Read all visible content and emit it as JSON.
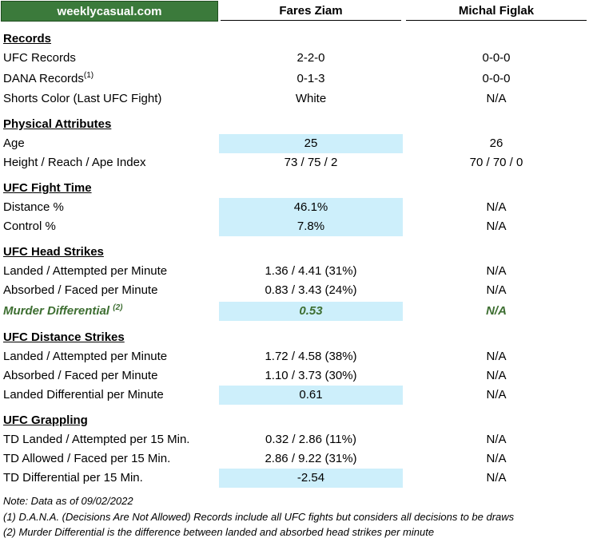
{
  "brand": "weeklycasual.com",
  "fighters": {
    "f1": "Fares Ziam",
    "f2": "Michal Figlak"
  },
  "sections": {
    "records": "Records",
    "physical": "Physical Attributes",
    "fight_time": "UFC Fight Time",
    "head": "UFC Head Strikes",
    "distance": "UFC Distance Strikes",
    "grappling": "UFC Grappling"
  },
  "rows": {
    "ufc_records": {
      "label": "UFC Records",
      "f1": "2-2-0",
      "f2": "0-0-0"
    },
    "dana_records": {
      "label": "DANA Records",
      "sup": "(1)",
      "f1": "0-1-3",
      "f2": "0-0-0"
    },
    "shorts": {
      "label": "Shorts Color (Last UFC Fight)",
      "f1": "White",
      "f2": "N/A"
    },
    "age": {
      "label": "Age",
      "f1": "25",
      "f2": "26"
    },
    "height": {
      "label": "Height / Reach / Ape Index",
      "f1": "73 / 75 / 2",
      "f2": "70 / 70 / 0"
    },
    "distance_pct": {
      "label": "Distance %",
      "f1": "46.1%",
      "f2": "N/A"
    },
    "control_pct": {
      "label": "Control %",
      "f1": "7.8%",
      "f2": "N/A"
    },
    "head_landed": {
      "label": "Landed / Attempted per Minute",
      "f1": "1.36 / 4.41 (31%)",
      "f2": "N/A"
    },
    "head_absorbed": {
      "label": "Absorbed / Faced per Minute",
      "f1": "0.83 / 3.43 (24%)",
      "f2": "N/A"
    },
    "murder_diff": {
      "label": "Murder Differential",
      "sup": "(2)",
      "f1": "0.53",
      "f2": "N/A"
    },
    "dist_landed": {
      "label": "Landed / Attempted per Minute",
      "f1": "1.72 / 4.58 (38%)",
      "f2": "N/A"
    },
    "dist_absorbed": {
      "label": "Absorbed / Faced per Minute",
      "f1": "1.10 / 3.73 (30%)",
      "f2": "N/A"
    },
    "dist_diff": {
      "label": "Landed Differential per Minute",
      "f1": "0.61",
      "f2": "N/A"
    },
    "td_landed": {
      "label": "TD Landed / Attempted per 15 Min.",
      "f1": "0.32 / 2.86 (11%)",
      "f2": "N/A"
    },
    "td_allowed": {
      "label": "TD Allowed / Faced per 15 Min.",
      "f1": "2.86 / 9.22 (31%)",
      "f2": "N/A"
    },
    "td_diff": {
      "label": "TD Differential per 15 Min.",
      "f1": "-2.54",
      "f2": "N/A"
    }
  },
  "notes": {
    "date": "Note: Data as of 09/02/2022",
    "n1": "(1) D.A.N.A. (Decisions Are Not Allowed) Records include all UFC fights but considers all decisions to be draws",
    "n2": "(2) Murder Differential is the difference between landed and absorbed head strikes per minute"
  }
}
